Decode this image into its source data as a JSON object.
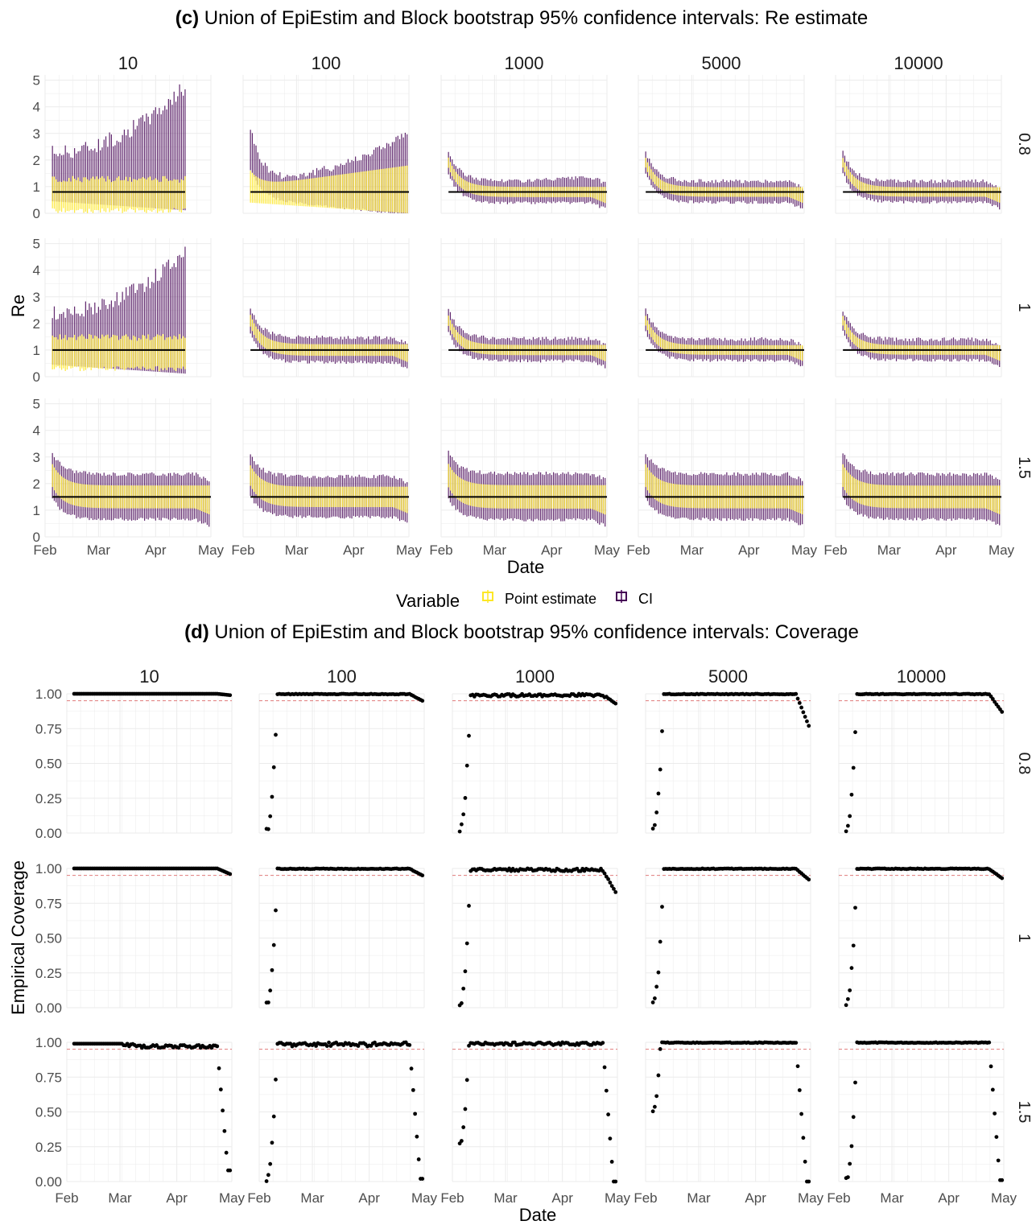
{
  "colors": {
    "point_estimate": "#fde725",
    "ci": "#440154",
    "truth_line": "#000000",
    "nominal_line": "#e07b7b",
    "grid": "#ebebeb",
    "strip_text": "#1a1a1a",
    "axis_text": "#4d4d4d"
  },
  "chart_data": [
    {
      "type": "errorbar",
      "title_bold": "(c)",
      "title_rest": " Union of EpiEstim and Block bootstrap 95% confidence intervals: Re estimate",
      "xlabel": "Date",
      "ylabel": "Re",
      "facet_cols": [
        "10",
        "100",
        "1000",
        "5000",
        "10000"
      ],
      "facet_rows": [
        "0.8",
        "1",
        "1.5"
      ],
      "true_re": [
        0.8,
        1,
        1.5
      ],
      "x_ticks": [
        "Feb",
        "Mar",
        "Apr",
        "May"
      ],
      "x_range": [
        "2020-02-01",
        "2020-05-01"
      ],
      "ylim": [
        0,
        5.2
      ],
      "y_ticks": [
        "0",
        "1",
        "2",
        "3",
        "4",
        "5"
      ],
      "legend": {
        "title": "Variable",
        "position": "bottom",
        "entries": [
          "Point estimate",
          "CI"
        ]
      },
      "grid": true
    },
    {
      "type": "scatter",
      "title_bold": "(d)",
      "title_rest": " Union of EpiEstim and Block bootstrap 95% confidence intervals: Coverage",
      "xlabel": "Date",
      "ylabel": "Empirical Coverage",
      "facet_cols": [
        "10",
        "100",
        "1000",
        "5000",
        "10000"
      ],
      "facet_rows": [
        "0.8",
        "1",
        "1.5"
      ],
      "x_ticks": [
        "Feb",
        "Mar",
        "Apr",
        "May"
      ],
      "x_range": [
        "2020-02-01",
        "2020-05-01"
      ],
      "ylim": [
        0,
        1
      ],
      "y_ticks": [
        "0.00",
        "0.25",
        "0.50",
        "0.75",
        "1.00"
      ],
      "nominal_level": 0.95,
      "grid": true,
      "coverage_ramp_start": [
        [
          null,
          0.0,
          0.0,
          0.0,
          0.0
        ],
        [
          null,
          0.0,
          0.0,
          0.0,
          0.0
        ],
        [
          null,
          0.0,
          0.25,
          0.5,
          0.0
        ]
      ],
      "coverage_tail": [
        [
          0.99,
          0.95,
          0.93,
          0.77,
          0.87
        ],
        [
          0.96,
          0.95,
          0.83,
          0.92,
          0.93
        ],
        [
          0.08,
          0.02,
          0.0,
          0.0,
          0.01
        ]
      ]
    }
  ]
}
